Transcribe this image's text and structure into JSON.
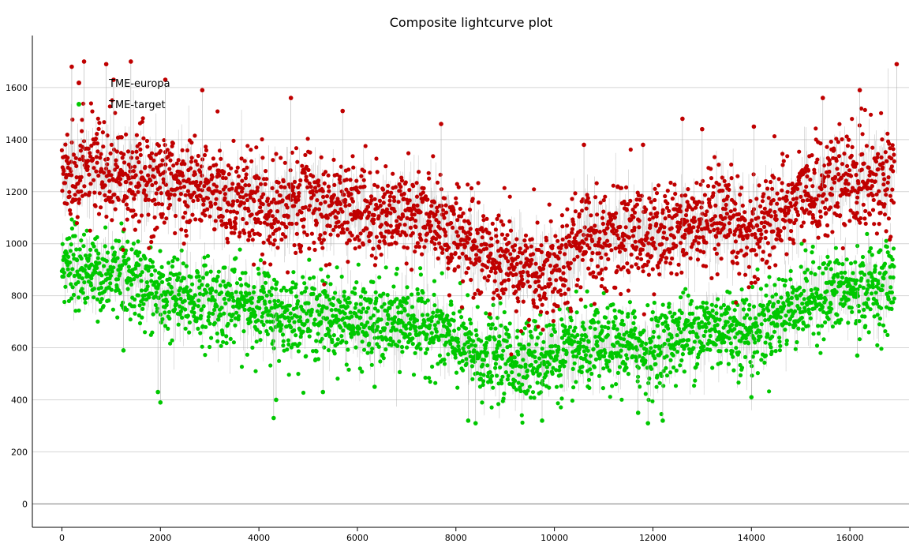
{
  "chart_data": {
    "type": "scatter",
    "title": "Composite lightcurve plot",
    "xlabel": "",
    "ylabel": "",
    "xlim": [
      -600,
      17200
    ],
    "ylim": [
      -90,
      1800
    ],
    "xticks": [
      0,
      2000,
      4000,
      6000,
      8000,
      10000,
      12000,
      14000,
      16000
    ],
    "yticks": [
      0,
      200,
      400,
      600,
      800,
      1000,
      1200,
      1400,
      1600
    ],
    "grid": "horizontal",
    "legend_position": "top-left",
    "series": [
      {
        "name": "TME-europa",
        "color": "#c00000",
        "marker": "circle",
        "trend": {
          "x": [
            0,
            500,
            1000,
            1500,
            2000,
            2500,
            3000,
            3500,
            4000,
            4500,
            5000,
            5500,
            6000,
            6500,
            7000,
            7500,
            8000,
            8500,
            9000,
            9500,
            9700,
            10000,
            10500,
            11000,
            11500,
            12000,
            12500,
            13000,
            13500,
            14000,
            14500,
            15000,
            15500,
            16000,
            16500,
            16900
          ],
          "y": [
            1270,
            1290,
            1260,
            1250,
            1230,
            1220,
            1200,
            1180,
            1160,
            1140,
            1170,
            1150,
            1130,
            1110,
            1120,
            1090,
            1020,
            960,
            930,
            900,
            880,
            930,
            1010,
            1030,
            1040,
            1020,
            1060,
            1080,
            1070,
            1040,
            1120,
            1180,
            1220,
            1240,
            1260,
            1270
          ]
        },
        "spread": 95,
        "outliers_high": [
          [
            200,
            1680
          ],
          [
            450,
            1700
          ],
          [
            900,
            1690
          ],
          [
            1400,
            1700
          ],
          [
            1050,
            1630
          ],
          [
            2100,
            1630
          ],
          [
            2850,
            1590
          ],
          [
            4650,
            1560
          ],
          [
            5700,
            1510
          ],
          [
            7700,
            1460
          ],
          [
            10600,
            1380
          ],
          [
            11800,
            1380
          ],
          [
            12600,
            1480
          ],
          [
            13000,
            1440
          ],
          [
            14050,
            1450
          ],
          [
            15450,
            1560
          ],
          [
            16200,
            1590
          ],
          [
            16950,
            1690
          ]
        ]
      },
      {
        "name": "TME-target",
        "color": "#00c800",
        "marker": "circle",
        "trend": {
          "x": [
            0,
            500,
            1000,
            1500,
            2000,
            2500,
            3000,
            3500,
            4000,
            4500,
            5000,
            5500,
            6000,
            6500,
            7000,
            7500,
            8000,
            8500,
            9000,
            9500,
            10000,
            10500,
            11000,
            11500,
            12000,
            12500,
            13000,
            13500,
            14000,
            14500,
            15000,
            15500,
            16000,
            16500,
            16900
          ],
          "y": [
            930,
            900,
            880,
            860,
            800,
            790,
            780,
            770,
            760,
            720,
            730,
            720,
            700,
            690,
            700,
            680,
            620,
            570,
            560,
            550,
            570,
            590,
            600,
            610,
            590,
            650,
            670,
            680,
            660,
            720,
            780,
            800,
            820,
            830,
            850
          ]
        },
        "spread": 80,
        "outliers_low": [
          [
            1250,
            590
          ],
          [
            2000,
            390
          ],
          [
            1950,
            430
          ],
          [
            4300,
            330
          ],
          [
            4350,
            400
          ],
          [
            5300,
            430
          ],
          [
            6350,
            450
          ],
          [
            8250,
            320
          ],
          [
            8400,
            310
          ],
          [
            9750,
            320
          ],
          [
            11700,
            350
          ],
          [
            11900,
            310
          ],
          [
            12200,
            320
          ],
          [
            14000,
            410
          ],
          [
            16150,
            570
          ]
        ]
      }
    ]
  }
}
